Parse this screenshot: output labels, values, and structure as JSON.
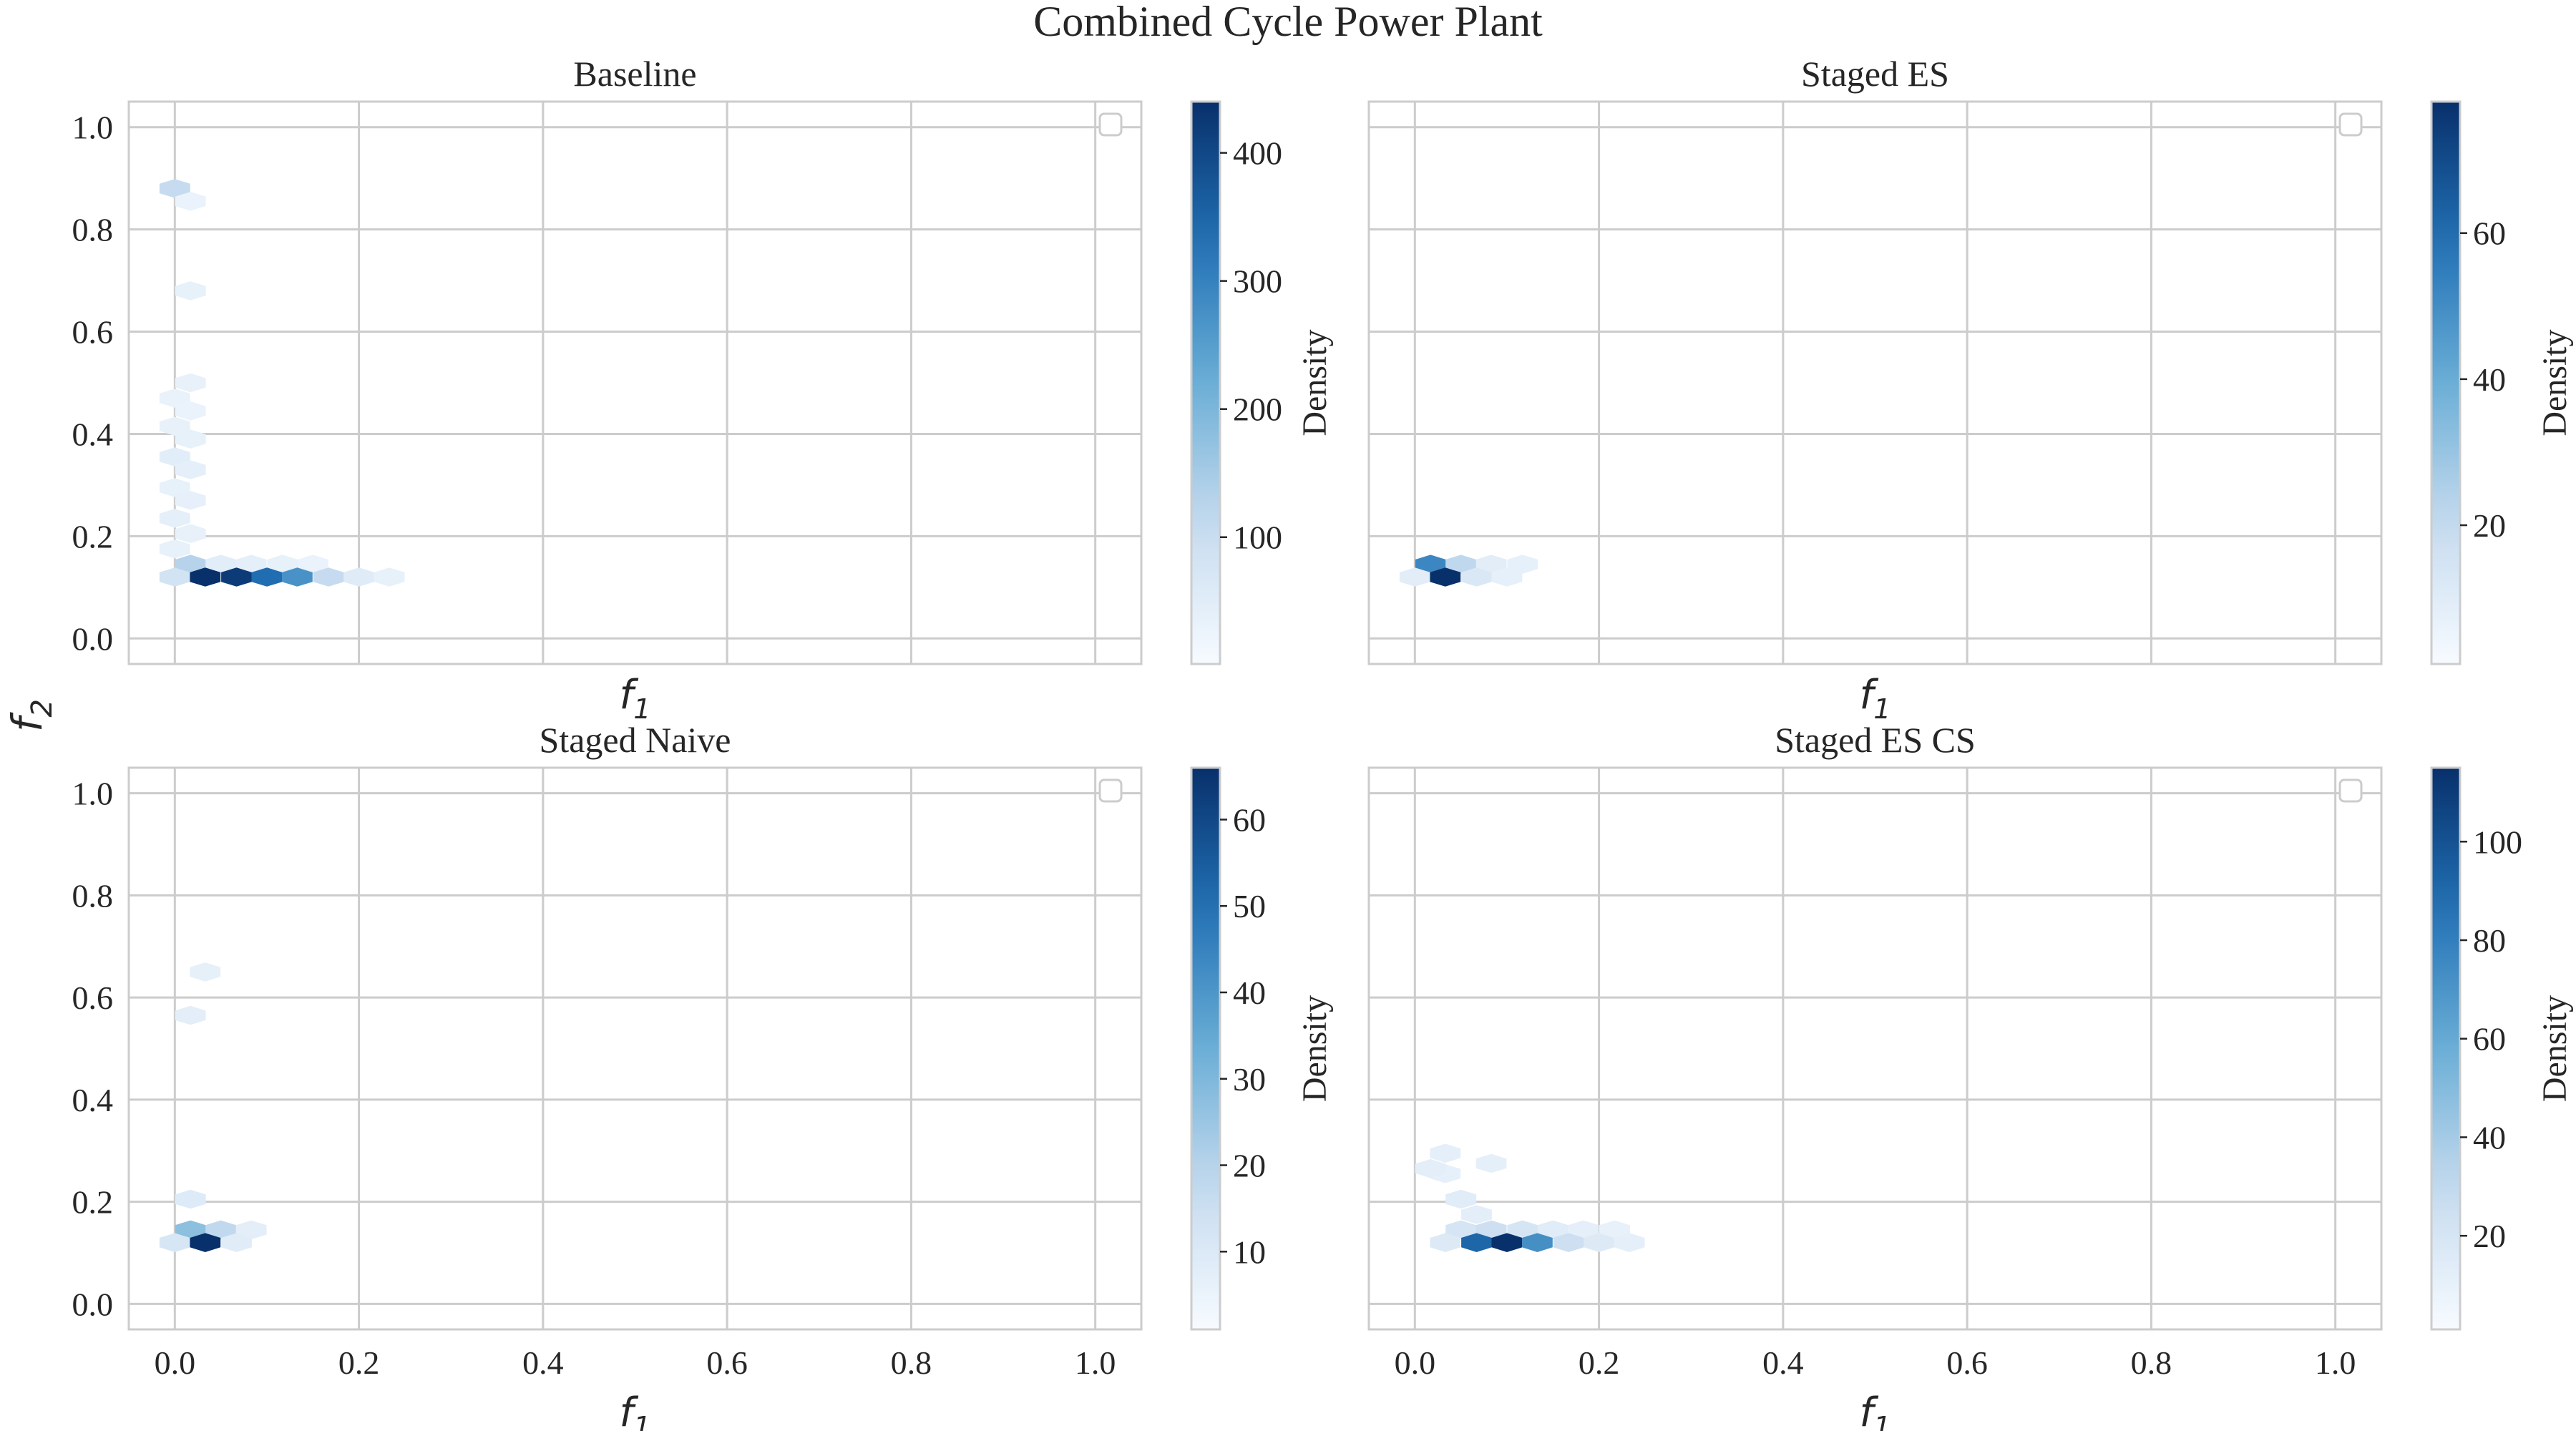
{
  "figure": {
    "title": "Combined Cycle Power Plant",
    "shared_ylabel": "f2"
  },
  "colors": {
    "cmap_low": "#f7fbff",
    "cmap_mid1": "#c6dbef",
    "cmap_mid2": "#6baed6",
    "cmap_mid3": "#2171b5",
    "cmap_high": "#08306b",
    "grid": "#cccccc",
    "spine": "#cccccc"
  },
  "chart_data": [
    {
      "type": "heatmap",
      "subtype": "hexbin",
      "title": "Baseline",
      "xlabel": "f1",
      "ylabel": "f2",
      "xlim": [
        -0.05,
        1.05
      ],
      "ylim": [
        -0.05,
        1.05
      ],
      "xticks": [
        "0.0",
        "0.2",
        "0.4",
        "0.6",
        "0.8",
        "1.0"
      ],
      "xticks_visible": false,
      "yticks": [
        "0.0",
        "0.2",
        "0.4",
        "0.6",
        "0.8",
        "1.0"
      ],
      "colorbar": {
        "label": "Density",
        "min": 1,
        "max": 440,
        "ticks": [
          "100",
          "200",
          "300",
          "400"
        ],
        "tick_values": [
          100,
          200,
          300,
          400
        ]
      },
      "bins": [
        {
          "x": 0.0,
          "y": 0.88,
          "v": 90
        },
        {
          "x": 0.017,
          "y": 0.855,
          "v": 5
        },
        {
          "x": 0.017,
          "y": 0.68,
          "v": 10
        },
        {
          "x": 0.017,
          "y": 0.5,
          "v": 8
        },
        {
          "x": 0.0,
          "y": 0.47,
          "v": 6
        },
        {
          "x": 0.017,
          "y": 0.445,
          "v": 5
        },
        {
          "x": 0.0,
          "y": 0.415,
          "v": 8
        },
        {
          "x": 0.017,
          "y": 0.39,
          "v": 10
        },
        {
          "x": 0.0,
          "y": 0.355,
          "v": 25
        },
        {
          "x": 0.017,
          "y": 0.33,
          "v": 15
        },
        {
          "x": 0.0,
          "y": 0.295,
          "v": 10
        },
        {
          "x": 0.017,
          "y": 0.27,
          "v": 12
        },
        {
          "x": 0.0,
          "y": 0.235,
          "v": 15
        },
        {
          "x": 0.017,
          "y": 0.205,
          "v": 8
        },
        {
          "x": 0.0,
          "y": 0.175,
          "v": 10
        },
        {
          "x": 0.017,
          "y": 0.145,
          "v": 110
        },
        {
          "x": 0.05,
          "y": 0.145,
          "v": 25
        },
        {
          "x": 0.083,
          "y": 0.145,
          "v": 15
        },
        {
          "x": 0.117,
          "y": 0.145,
          "v": 10
        },
        {
          "x": 0.15,
          "y": 0.145,
          "v": 5
        },
        {
          "x": 0.0,
          "y": 0.12,
          "v": 60
        },
        {
          "x": 0.033,
          "y": 0.12,
          "v": 440
        },
        {
          "x": 0.067,
          "y": 0.12,
          "v": 420
        },
        {
          "x": 0.1,
          "y": 0.12,
          "v": 330
        },
        {
          "x": 0.133,
          "y": 0.12,
          "v": 260
        },
        {
          "x": 0.167,
          "y": 0.12,
          "v": 90
        },
        {
          "x": 0.2,
          "y": 0.12,
          "v": 30
        },
        {
          "x": 0.233,
          "y": 0.12,
          "v": 10
        }
      ]
    },
    {
      "type": "heatmap",
      "subtype": "hexbin",
      "title": "Staged ES",
      "xlabel": "f1",
      "ylabel": "",
      "xlim": [
        -0.05,
        1.05
      ],
      "ylim": [
        -0.05,
        1.05
      ],
      "xticks": [
        "0.0",
        "0.2",
        "0.4",
        "0.6",
        "0.8",
        "1.0"
      ],
      "xticks_visible": false,
      "yticks": [
        "0.0",
        "0.2",
        "0.4",
        "0.6",
        "0.8",
        "1.0"
      ],
      "yticks_visible": false,
      "colorbar": {
        "label": "Density",
        "min": 1,
        "max": 78,
        "ticks": [
          "20",
          "40",
          "60"
        ],
        "tick_values": [
          20,
          40,
          60
        ]
      },
      "bins": [
        {
          "x": 0.017,
          "y": 0.145,
          "v": 50
        },
        {
          "x": 0.05,
          "y": 0.145,
          "v": 18
        },
        {
          "x": 0.083,
          "y": 0.145,
          "v": 5
        },
        {
          "x": 0.117,
          "y": 0.145,
          "v": 3
        },
        {
          "x": 0.0,
          "y": 0.12,
          "v": 5
        },
        {
          "x": 0.033,
          "y": 0.12,
          "v": 78
        },
        {
          "x": 0.067,
          "y": 0.12,
          "v": 8
        },
        {
          "x": 0.1,
          "y": 0.12,
          "v": 3
        }
      ]
    },
    {
      "type": "heatmap",
      "subtype": "hexbin",
      "title": "Staged Naive",
      "xlabel": "f1",
      "ylabel": "f2",
      "xlim": [
        -0.05,
        1.05
      ],
      "ylim": [
        -0.05,
        1.05
      ],
      "xticks": [
        "0.0",
        "0.2",
        "0.4",
        "0.6",
        "0.8",
        "1.0"
      ],
      "yticks": [
        "0.0",
        "0.2",
        "0.4",
        "0.6",
        "0.8",
        "1.0"
      ],
      "colorbar": {
        "label": "Density",
        "min": 1,
        "max": 66,
        "ticks": [
          "10",
          "20",
          "30",
          "40",
          "50",
          "60"
        ],
        "tick_values": [
          10,
          20,
          30,
          40,
          50,
          60
        ]
      },
      "bins": [
        {
          "x": 0.033,
          "y": 0.65,
          "v": 3
        },
        {
          "x": 0.017,
          "y": 0.565,
          "v": 4
        },
        {
          "x": 0.017,
          "y": 0.205,
          "v": 6
        },
        {
          "x": 0.017,
          "y": 0.145,
          "v": 25
        },
        {
          "x": 0.05,
          "y": 0.145,
          "v": 15
        },
        {
          "x": 0.083,
          "y": 0.145,
          "v": 4
        },
        {
          "x": 0.0,
          "y": 0.12,
          "v": 8
        },
        {
          "x": 0.033,
          "y": 0.12,
          "v": 66
        },
        {
          "x": 0.067,
          "y": 0.12,
          "v": 5
        }
      ]
    },
    {
      "type": "heatmap",
      "subtype": "hexbin",
      "title": "Staged ES CS",
      "xlabel": "f1",
      "ylabel": "",
      "xlim": [
        -0.05,
        1.05
      ],
      "ylim": [
        -0.05,
        1.05
      ],
      "xticks": [
        "0.0",
        "0.2",
        "0.4",
        "0.6",
        "0.8",
        "1.0"
      ],
      "yticks": [
        "0.0",
        "0.2",
        "0.4",
        "0.6",
        "0.8",
        "1.0"
      ],
      "yticks_visible": false,
      "colorbar": {
        "label": "Density",
        "min": 1,
        "max": 115,
        "ticks": [
          "20",
          "40",
          "60",
          "80",
          "100"
        ],
        "tick_values": [
          20,
          40,
          60,
          80,
          100
        ]
      },
      "bins": [
        {
          "x": 0.033,
          "y": 0.295,
          "v": 5
        },
        {
          "x": 0.033,
          "y": 0.255,
          "v": 4
        },
        {
          "x": 0.083,
          "y": 0.275,
          "v": 5
        },
        {
          "x": 0.017,
          "y": 0.265,
          "v": 6
        },
        {
          "x": 0.05,
          "y": 0.205,
          "v": 8
        },
        {
          "x": 0.067,
          "y": 0.175,
          "v": 6
        },
        {
          "x": 0.05,
          "y": 0.145,
          "v": 15
        },
        {
          "x": 0.083,
          "y": 0.145,
          "v": 20
        },
        {
          "x": 0.117,
          "y": 0.145,
          "v": 15
        },
        {
          "x": 0.15,
          "y": 0.145,
          "v": 8
        },
        {
          "x": 0.183,
          "y": 0.145,
          "v": 5
        },
        {
          "x": 0.217,
          "y": 0.145,
          "v": 3
        },
        {
          "x": 0.033,
          "y": 0.12,
          "v": 10
        },
        {
          "x": 0.067,
          "y": 0.12,
          "v": 90
        },
        {
          "x": 0.1,
          "y": 0.12,
          "v": 115
        },
        {
          "x": 0.133,
          "y": 0.12,
          "v": 70
        },
        {
          "x": 0.167,
          "y": 0.12,
          "v": 20
        },
        {
          "x": 0.2,
          "y": 0.12,
          "v": 10
        },
        {
          "x": 0.233,
          "y": 0.12,
          "v": 5
        }
      ]
    }
  ]
}
